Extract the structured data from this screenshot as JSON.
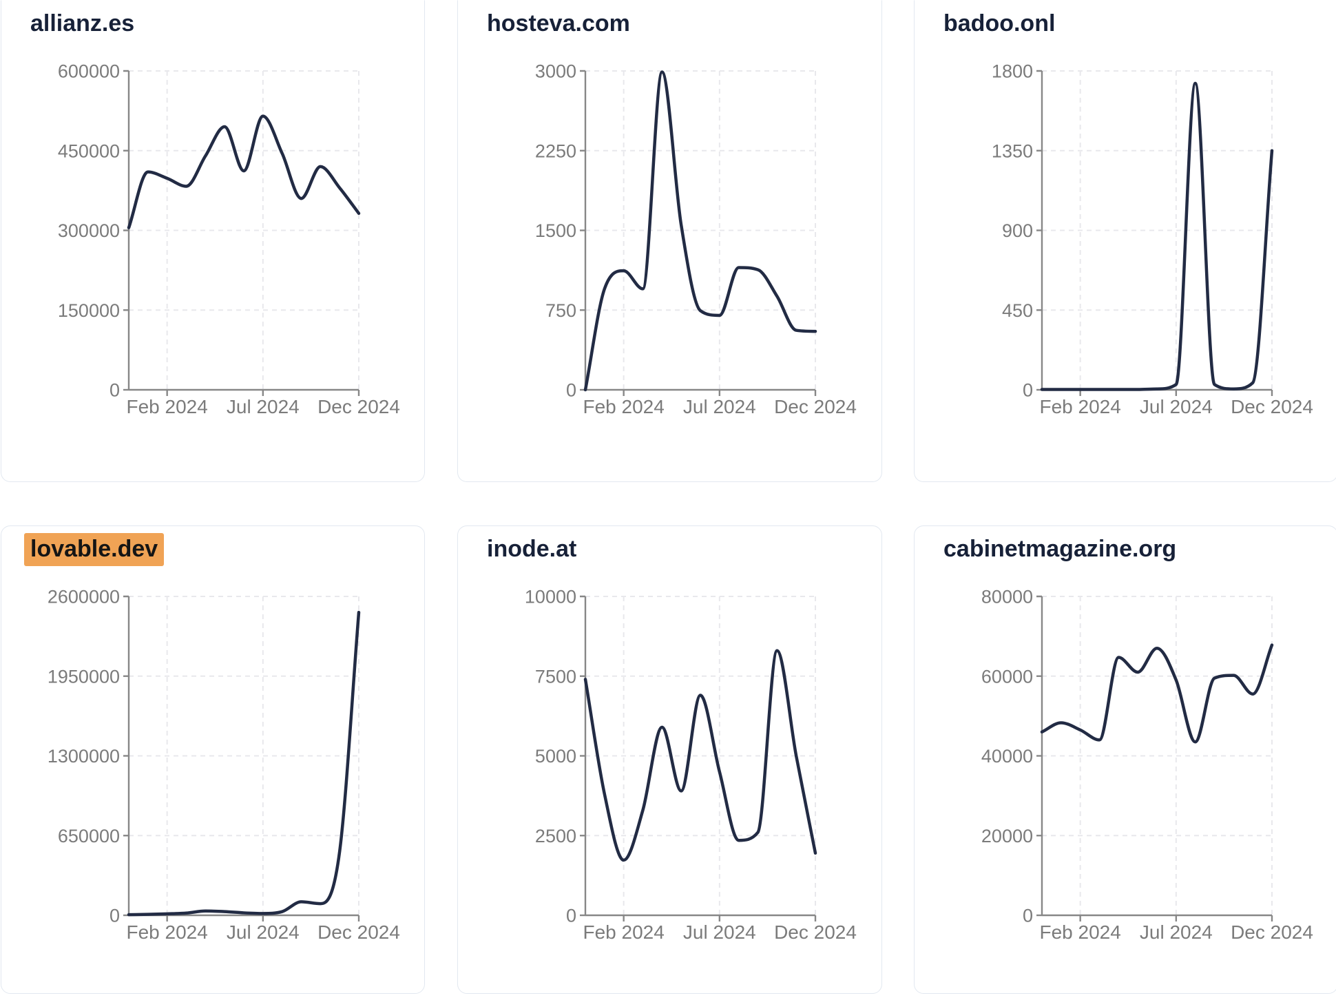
{
  "style": {
    "page_bg": "#ffffff",
    "card_bg": "#ffffff",
    "card_border": "#e2e8f0",
    "line_color": "#222b44",
    "axis_color": "#878787",
    "label_color": "#7b7b7b",
    "grid_color": "#e8e8ec",
    "title_color": "#172138",
    "highlight_bg": "#f0a355",
    "highlight_text": "#151515"
  },
  "chart_data": [
    {
      "type": "line",
      "title": "allianz.es",
      "highlighted": false,
      "ylim": [
        0,
        600000
      ],
      "y_ticks": [
        0,
        150000,
        300000,
        450000,
        600000
      ],
      "x_tick_labels": [
        "Feb 2024",
        "Jul 2024",
        "Dec 2024"
      ],
      "x_tick_positions": [
        2,
        7,
        12
      ],
      "values": [
        305000,
        410000,
        398000,
        383000,
        440000,
        495000,
        412000,
        515000,
        445000,
        360000,
        420000,
        380000,
        332000
      ]
    },
    {
      "type": "line",
      "title": "hosteva.com",
      "highlighted": false,
      "ylim": [
        0,
        3000
      ],
      "y_ticks": [
        0,
        750,
        1500,
        2250,
        3000
      ],
      "x_tick_labels": [
        "Feb 2024",
        "Jul 2024",
        "Dec 2024"
      ],
      "x_tick_positions": [
        2,
        7,
        12
      ],
      "values": [
        0,
        950,
        1120,
        950,
        2990,
        1550,
        745,
        700,
        1150,
        1130,
        880,
        560,
        550
      ]
    },
    {
      "type": "line",
      "title": "badoo.onl",
      "highlighted": false,
      "ylim": [
        0,
        1800
      ],
      "y_ticks": [
        0,
        450,
        900,
        1350,
        1800
      ],
      "x_tick_labels": [
        "Feb 2024",
        "Jul 2024",
        "Dec 2024"
      ],
      "x_tick_positions": [
        2,
        7,
        12
      ],
      "values": [
        2,
        2,
        2,
        2,
        2,
        2,
        5,
        30,
        1730,
        30,
        5,
        40,
        1350
      ]
    },
    {
      "type": "line",
      "title": "lovable.dev",
      "highlighted": true,
      "ylim": [
        0,
        2600000
      ],
      "y_ticks": [
        0,
        650000,
        1300000,
        1950000,
        2600000
      ],
      "x_tick_labels": [
        "Feb 2024",
        "Jul 2024",
        "Dec 2024"
      ],
      "x_tick_positions": [
        2,
        7,
        12
      ],
      "values": [
        5000,
        8000,
        12000,
        18000,
        35000,
        30000,
        20000,
        15000,
        30000,
        110000,
        95000,
        520000,
        2470000
      ]
    },
    {
      "type": "line",
      "title": "inode.at",
      "highlighted": false,
      "ylim": [
        0,
        10000
      ],
      "y_ticks": [
        0,
        2500,
        5000,
        7500,
        10000
      ],
      "x_tick_labels": [
        "Feb 2024",
        "Jul 2024",
        "Dec 2024"
      ],
      "x_tick_positions": [
        2,
        7,
        12
      ],
      "values": [
        7400,
        3800,
        1730,
        3300,
        5900,
        3900,
        6900,
        4500,
        2350,
        2600,
        8300,
        5000,
        1950
      ]
    },
    {
      "type": "line",
      "title": "cabinetmagazine.org",
      "highlighted": false,
      "ylim": [
        0,
        80000
      ],
      "y_ticks": [
        0,
        20000,
        40000,
        60000,
        80000
      ],
      "x_tick_labels": [
        "Feb 2024",
        "Jul 2024",
        "Dec 2024"
      ],
      "x_tick_positions": [
        2,
        7,
        12
      ],
      "values": [
        46000,
        48300,
        46500,
        44000,
        64700,
        61000,
        67000,
        59000,
        43500,
        59500,
        60200,
        55500,
        67800
      ]
    }
  ]
}
